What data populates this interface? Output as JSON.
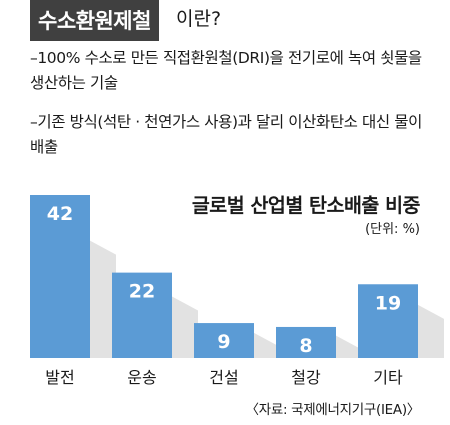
{
  "header": {
    "badge": "수소환원제철",
    "suffix": "이란?"
  },
  "description": [
    "–100% 수소로 만든 직접환원철(DRI)을 전기로에 녹여 쇳물을 생산하는 기술",
    "–기존 방식(석탄 · 천연가스 사용)과 달리 이산화탄소 대신 물이 배출"
  ],
  "chart_data": {
    "type": "bar",
    "title": "글로벌 산업별 탄소배출 비중",
    "unit": "(단위: %)",
    "categories": [
      "발전",
      "운송",
      "건설",
      "철강",
      "기타"
    ],
    "values": [
      42,
      22,
      9,
      8,
      19
    ],
    "data_labels": [
      "42",
      "22",
      "9",
      "8",
      "19"
    ],
    "ylim": [
      0,
      42
    ],
    "colors": {
      "bar": "#5b9bd5",
      "shadow": "#e2e2e2",
      "label": "#ffffff"
    }
  },
  "source": "〈자료: 국제에너지기구(IEA)〉"
}
